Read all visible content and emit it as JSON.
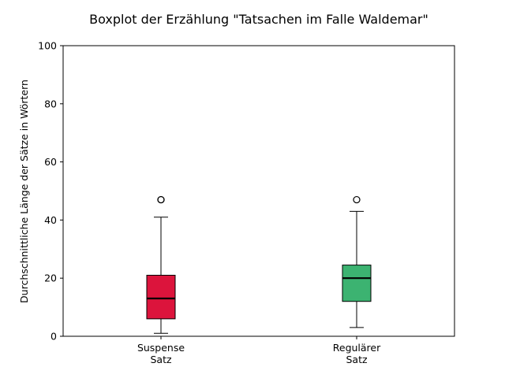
{
  "chart_data": {
    "type": "boxplot",
    "title": "Boxplot der Erzählung \"Tatsachen im Falle Waldemar\"",
    "xlabel": "",
    "ylabel": "Durchschnittliche Länge der Sätze in Wörtern",
    "ylim": [
      0,
      100
    ],
    "yticks": [
      0,
      20,
      40,
      60,
      80,
      100
    ],
    "grid": false,
    "categories": [
      [
        "Suspense",
        "Satz"
      ],
      [
        "Regulärer",
        "Satz"
      ]
    ],
    "boxes": [
      {
        "whisker_low": 1,
        "q1": 6,
        "median": 13,
        "q3": 21,
        "whisker_high": 41,
        "outliers": [
          47,
          47
        ],
        "color": "#DC143C"
      },
      {
        "whisker_low": 3,
        "q1": 12,
        "median": 20,
        "q3": 24.5,
        "whisker_high": 43,
        "outliers": [
          47
        ],
        "color": "#3CB371"
      }
    ]
  }
}
